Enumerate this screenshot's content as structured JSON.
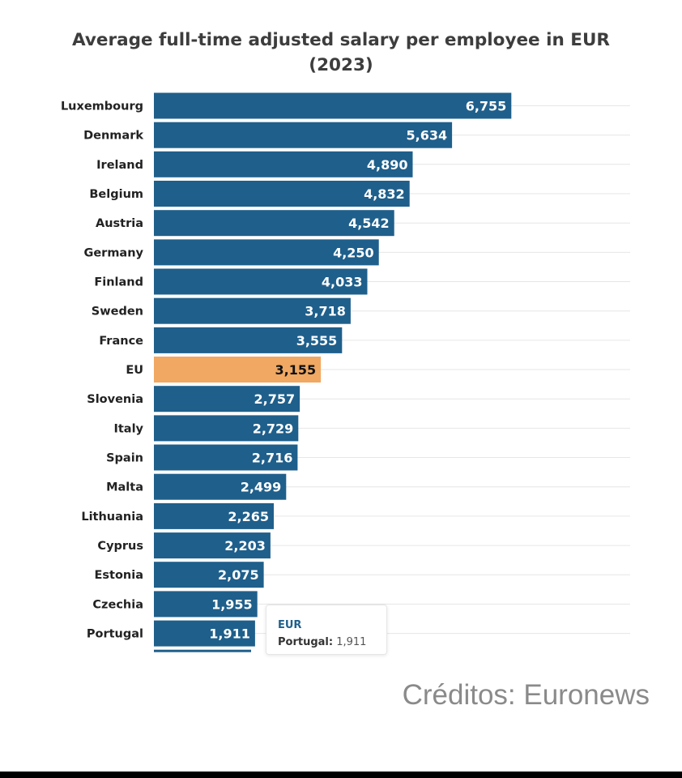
{
  "chart_data": {
    "type": "bar",
    "orientation": "horizontal",
    "title": "Average full-time adjusted salary per employee in EUR (2023)",
    "title_lines": [
      "Average full-time adjusted salary per employee in EUR",
      "(2023)"
    ],
    "categories": [
      "Luxembourg",
      "Denmark",
      "Ireland",
      "Belgium",
      "Austria",
      "Germany",
      "Finland",
      "Sweden",
      "France",
      "EU",
      "Slovenia",
      "Italy",
      "Spain",
      "Malta",
      "Lithuania",
      "Cyprus",
      "Estonia",
      "Czechia",
      "Portugal"
    ],
    "values": [
      6755,
      5634,
      4890,
      4832,
      4542,
      4250,
      4033,
      3718,
      3555,
      3155,
      2757,
      2729,
      2716,
      2499,
      2265,
      2203,
      2075,
      1955,
      1911
    ],
    "labels": [
      "6,755",
      "5,634",
      "4,890",
      "4,832",
      "4,542",
      "4,250",
      "4,033",
      "3,718",
      "3,555",
      "3,155",
      "2,757",
      "2,729",
      "2,716",
      "2,499",
      "2,265",
      "2,203",
      "2,075",
      "1,955",
      "1,911"
    ],
    "highlight_category": "EU",
    "colors": {
      "bar": "#1f5f8b",
      "highlight": "#f0a862",
      "grid": "#e6e6e6",
      "label": "#ffffff",
      "highlight_label": "#111111",
      "category_label": "#222222"
    },
    "xlim": [
      0,
      9000
    ],
    "grid": true,
    "legend": "none"
  },
  "tooltip": {
    "series": "EUR",
    "category": "Portugal:",
    "value": "1,911"
  },
  "credits": "Créditos: Euronews"
}
